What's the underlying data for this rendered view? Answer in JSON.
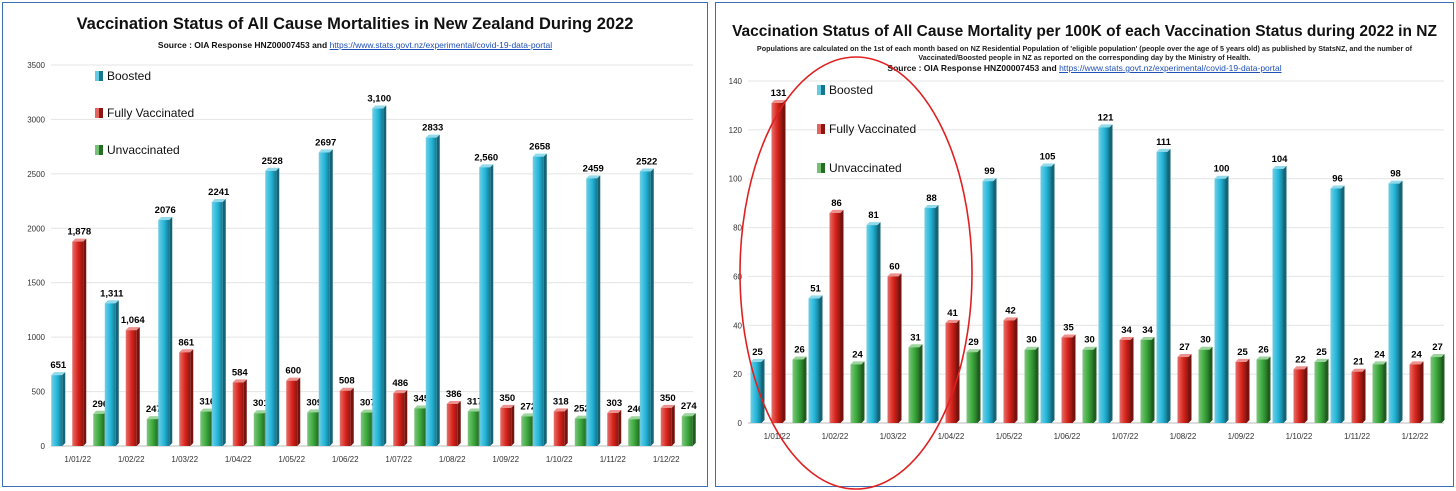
{
  "colors": {
    "boosted": "#22b5d8",
    "fully": "#d8221a",
    "unvacc": "#3aa83a",
    "ellipse": "#e02020",
    "frame": "#3b6fb6"
  },
  "left": {
    "title": "Vaccination Status of All Cause Mortalities in New Zealand During 2022",
    "source_prefix": "Source : OIA Response HNZ00007453 and",
    "source_link": "https://www.stats.govt.nz/experimental/covid-19-data-portal"
  },
  "right": {
    "title": "Vaccination Status of All Cause Mortality per 100K of each Vaccination Status during 2022 in NZ",
    "note": "Populations are calculated on the 1st of each month based on NZ Residential Population of 'eligible population' (people over the age of 5 years old) as published by StatsNZ, and the number of Vaccinated/Boosted people in NZ as reported on the corresponding day by the Ministry of Health.",
    "source_prefix": "Source : OIA Response HNZ00007453 and",
    "source_link": "https://www.stats.govt.nz/experimental/covid-19-data-portal"
  },
  "chart_data": [
    {
      "type": "bar",
      "title": "Vaccination Status of All Cause Mortalities in New Zealand During 2022",
      "categories": [
        "1/01/22",
        "1/02/22",
        "1/03/22",
        "1/04/22",
        "1/05/22",
        "1/06/22",
        "1/07/22",
        "1/08/22",
        "1/09/22",
        "1/10/22",
        "1/11/22",
        "1/12/22"
      ],
      "ylim": [
        0,
        3500
      ],
      "yticks": [
        0,
        500,
        1000,
        1500,
        2000,
        2500,
        3000,
        3500
      ],
      "legend": "top-left",
      "grid": true,
      "series": [
        {
          "name": "Boosted",
          "values": [
            651,
            1311,
            2076,
            2241,
            2528,
            2697,
            3100,
            2833,
            2560,
            2658,
            2459,
            2522
          ],
          "labels": [
            "651",
            "1,311",
            "2076",
            "2241",
            "2528",
            "2697",
            "3,100",
            "2833",
            "2,560",
            "2658",
            "2459",
            "2522"
          ]
        },
        {
          "name": "Fully Vaccinated",
          "values": [
            1878,
            1064,
            861,
            584,
            600,
            508,
            486,
            386,
            350,
            318,
            303,
            350
          ],
          "labels": [
            "1,878",
            "1,064",
            "861",
            "584",
            "600",
            "508",
            "486",
            "386",
            "350",
            "318",
            "303",
            "350"
          ]
        },
        {
          "name": "Unvaccinated",
          "values": [
            296,
            247,
            316,
            301,
            309,
            307,
            345,
            317,
            272,
            252,
            246,
            274
          ],
          "labels": [
            "296",
            "247",
            "316",
            "301",
            "309",
            "307",
            "345",
            "317",
            "272",
            "252",
            "246",
            "274"
          ]
        }
      ]
    },
    {
      "type": "bar",
      "title": "Vaccination Status of All Cause Mortality per 100K of each Vaccination Status during 2022 in NZ",
      "categories": [
        "1/01/22",
        "1/02/22",
        "1/03/22",
        "1/04/22",
        "1/05/22",
        "1/06/22",
        "1/07/22",
        "1/08/22",
        "1/09/22",
        "1/10/22",
        "1/11/22",
        "1/12/22"
      ],
      "ylim": [
        0,
        140
      ],
      "yticks": [
        0,
        20,
        40,
        60,
        80,
        100,
        120,
        140
      ],
      "legend": "top-left",
      "grid": true,
      "series": [
        {
          "name": "Boosted",
          "values": [
            25,
            51,
            81,
            88,
            99,
            105,
            121,
            111,
            100,
            104,
            96,
            98
          ],
          "labels": [
            "25",
            "51",
            "81",
            "88",
            "99",
            "105",
            "121",
            "111",
            "100",
            "104",
            "96",
            "98"
          ]
        },
        {
          "name": "Fully Vaccinated",
          "values": [
            131,
            86,
            60,
            41,
            42,
            35,
            34,
            27,
            25,
            22,
            21,
            24
          ],
          "labels": [
            "131",
            "86",
            "60",
            "41",
            "42",
            "35",
            "34",
            "27",
            "25",
            "22",
            "21",
            "24"
          ]
        },
        {
          "name": "Unvaccinated",
          "values": [
            26,
            24,
            31,
            29,
            30,
            30,
            34,
            30,
            26,
            25,
            24,
            27
          ],
          "labels": [
            "26",
            "24",
            "31",
            "29",
            "30",
            "30",
            "34",
            "30",
            "26",
            "25",
            "24",
            "27"
          ]
        }
      ]
    }
  ]
}
